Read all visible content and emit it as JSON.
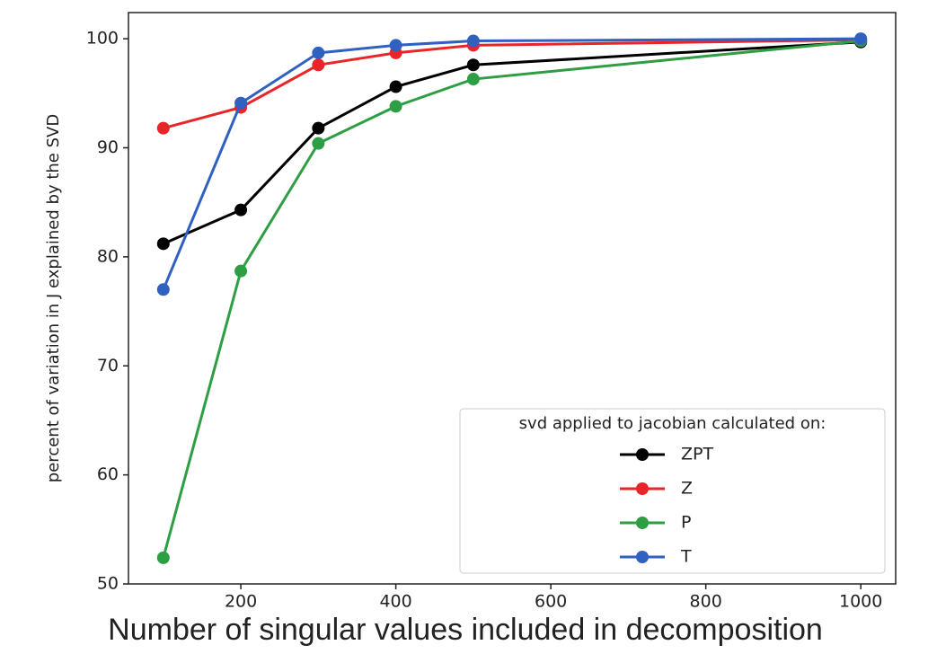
{
  "chart_data": {
    "type": "line",
    "xlabel": "Number of singular values included in decomposition",
    "ylabel": "percent of variation in J explained by the SVD",
    "legend_title": "svd applied to jacobian calculated on:",
    "legend": "lower right",
    "x": [
      100,
      200,
      300,
      400,
      500,
      1000
    ],
    "series": [
      {
        "name": "ZPT",
        "color": "#000000",
        "values": [
          81.2,
          84.3,
          91.8,
          95.6,
          97.6,
          99.7
        ]
      },
      {
        "name": "Z",
        "color": "#e8262a",
        "values": [
          91.8,
          93.7,
          97.6,
          98.7,
          99.4,
          99.9
        ]
      },
      {
        "name": "P",
        "color": "#2e9e44",
        "values": [
          52.4,
          78.7,
          90.4,
          93.8,
          96.3,
          99.8
        ]
      },
      {
        "name": "T",
        "color": "#3060c0",
        "values": [
          77.0,
          94.1,
          98.7,
          99.4,
          99.8,
          100.0
        ]
      }
    ],
    "xlim": [
      55,
      1045
    ],
    "xticks": [
      200,
      400,
      600,
      800,
      1000
    ],
    "ylim": [
      50,
      102.4
    ],
    "yticks": [
      50,
      60,
      70,
      80,
      90,
      100
    ]
  }
}
